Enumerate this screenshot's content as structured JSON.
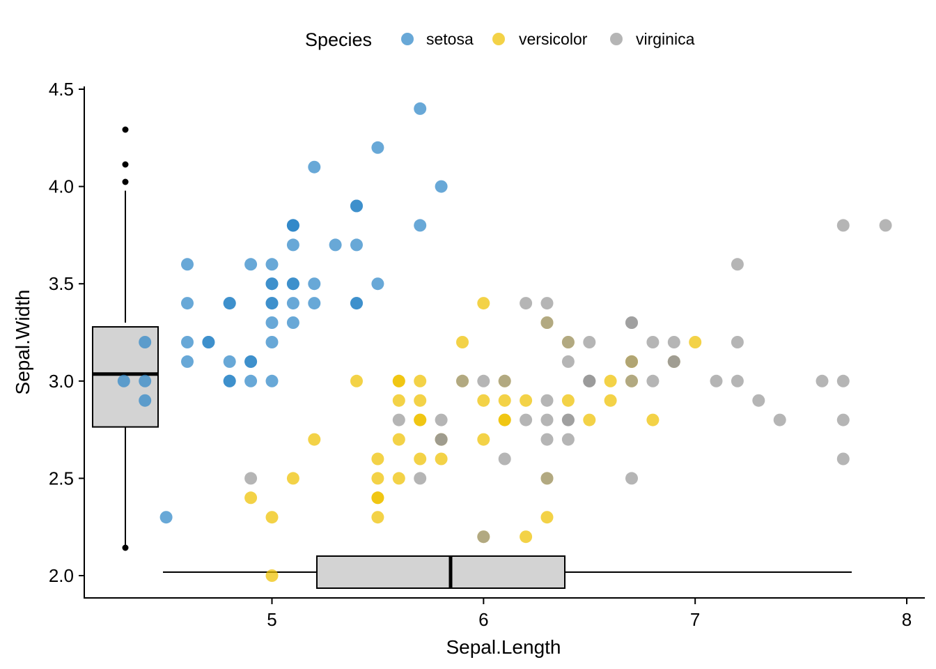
{
  "chart_data": {
    "type": "scatter",
    "title": "",
    "xlabel": "Sepal.Length",
    "ylabel": "Sepal.Width",
    "xlim": [
      4.2,
      8.1
    ],
    "ylim": [
      1.89,
      4.52
    ],
    "x_ticks": [
      5,
      6,
      7,
      8
    ],
    "x_tick_labels": [
      "5",
      "6",
      "7",
      "8"
    ],
    "y_ticks": [
      2.0,
      2.5,
      3.0,
      3.5,
      4.0,
      4.5
    ],
    "y_tick_labels": [
      "2.0",
      "2.5",
      "3.0",
      "3.5",
      "4.0",
      "4.5"
    ],
    "grid": false,
    "legend": {
      "title": "Species",
      "position": "top",
      "entries": [
        {
          "label": "setosa",
          "color": "#2E86C8"
        },
        {
          "label": "versicolor",
          "color": "#EFC000"
        },
        {
          "label": "virginica",
          "color": "#999999"
        }
      ]
    },
    "point_opacity": 0.72,
    "series": [
      {
        "name": "setosa",
        "color": "#2E86C8",
        "points": [
          [
            5.1,
            3.5
          ],
          [
            4.9,
            3.0
          ],
          [
            4.7,
            3.2
          ],
          [
            4.6,
            3.1
          ],
          [
            5.0,
            3.6
          ],
          [
            5.4,
            3.9
          ],
          [
            4.6,
            3.4
          ],
          [
            5.0,
            3.4
          ],
          [
            4.4,
            2.9
          ],
          [
            4.9,
            3.1
          ],
          [
            5.4,
            3.7
          ],
          [
            4.8,
            3.4
          ],
          [
            4.8,
            3.0
          ],
          [
            4.3,
            3.0
          ],
          [
            5.8,
            4.0
          ],
          [
            5.7,
            4.4
          ],
          [
            5.4,
            3.9
          ],
          [
            5.1,
            3.5
          ],
          [
            5.7,
            3.8
          ],
          [
            5.1,
            3.8
          ],
          [
            5.4,
            3.4
          ],
          [
            5.1,
            3.7
          ],
          [
            4.6,
            3.6
          ],
          [
            5.1,
            3.3
          ],
          [
            4.8,
            3.4
          ],
          [
            5.0,
            3.0
          ],
          [
            5.0,
            3.4
          ],
          [
            5.2,
            3.5
          ],
          [
            5.2,
            3.4
          ],
          [
            4.7,
            3.2
          ],
          [
            4.8,
            3.1
          ],
          [
            5.4,
            3.4
          ],
          [
            5.2,
            4.1
          ],
          [
            5.5,
            4.2
          ],
          [
            4.9,
            3.1
          ],
          [
            5.0,
            3.2
          ],
          [
            5.5,
            3.5
          ],
          [
            4.9,
            3.6
          ],
          [
            4.4,
            3.0
          ],
          [
            5.1,
            3.4
          ],
          [
            5.0,
            3.5
          ],
          [
            4.5,
            2.3
          ],
          [
            4.4,
            3.2
          ],
          [
            5.0,
            3.5
          ],
          [
            5.1,
            3.8
          ],
          [
            4.8,
            3.0
          ],
          [
            5.1,
            3.8
          ],
          [
            4.6,
            3.2
          ],
          [
            5.3,
            3.7
          ],
          [
            5.0,
            3.3
          ]
        ]
      },
      {
        "name": "versicolor",
        "color": "#EFC000",
        "points": [
          [
            7.0,
            3.2
          ],
          [
            6.4,
            3.2
          ],
          [
            6.9,
            3.1
          ],
          [
            5.5,
            2.3
          ],
          [
            6.5,
            2.8
          ],
          [
            5.7,
            2.8
          ],
          [
            6.3,
            3.3
          ],
          [
            4.9,
            2.4
          ],
          [
            6.6,
            2.9
          ],
          [
            5.2,
            2.7
          ],
          [
            5.0,
            2.0
          ],
          [
            5.9,
            3.0
          ],
          [
            6.0,
            2.2
          ],
          [
            6.1,
            2.9
          ],
          [
            5.6,
            2.9
          ],
          [
            6.7,
            3.1
          ],
          [
            5.6,
            3.0
          ],
          [
            5.8,
            2.7
          ],
          [
            6.2,
            2.2
          ],
          [
            5.6,
            2.5
          ],
          [
            5.9,
            3.2
          ],
          [
            6.1,
            2.8
          ],
          [
            6.3,
            2.5
          ],
          [
            6.1,
            2.8
          ],
          [
            6.4,
            2.9
          ],
          [
            6.6,
            3.0
          ],
          [
            6.8,
            2.8
          ],
          [
            6.7,
            3.0
          ],
          [
            6.0,
            2.9
          ],
          [
            5.7,
            2.6
          ],
          [
            5.5,
            2.4
          ],
          [
            5.5,
            2.4
          ],
          [
            5.8,
            2.7
          ],
          [
            6.0,
            2.7
          ],
          [
            5.4,
            3.0
          ],
          [
            6.0,
            3.4
          ],
          [
            6.7,
            3.1
          ],
          [
            6.3,
            2.3
          ],
          [
            5.6,
            3.0
          ],
          [
            5.5,
            2.5
          ],
          [
            5.5,
            2.6
          ],
          [
            6.1,
            3.0
          ],
          [
            5.8,
            2.6
          ],
          [
            5.0,
            2.3
          ],
          [
            5.6,
            2.7
          ],
          [
            5.7,
            3.0
          ],
          [
            5.7,
            2.9
          ],
          [
            6.2,
            2.9
          ],
          [
            5.1,
            2.5
          ],
          [
            5.7,
            2.8
          ]
        ]
      },
      {
        "name": "virginica",
        "color": "#999999",
        "points": [
          [
            6.3,
            3.3
          ],
          [
            5.8,
            2.7
          ],
          [
            7.1,
            3.0
          ],
          [
            6.3,
            2.9
          ],
          [
            6.5,
            3.0
          ],
          [
            7.6,
            3.0
          ],
          [
            4.9,
            2.5
          ],
          [
            7.3,
            2.9
          ],
          [
            6.7,
            2.5
          ],
          [
            7.2,
            3.6
          ],
          [
            6.5,
            3.2
          ],
          [
            6.4,
            2.7
          ],
          [
            6.8,
            3.0
          ],
          [
            5.7,
            2.5
          ],
          [
            5.8,
            2.8
          ],
          [
            6.4,
            3.2
          ],
          [
            6.5,
            3.0
          ],
          [
            7.7,
            3.8
          ],
          [
            7.7,
            2.6
          ],
          [
            6.0,
            2.2
          ],
          [
            6.9,
            3.2
          ],
          [
            5.6,
            2.8
          ],
          [
            7.7,
            2.8
          ],
          [
            6.3,
            2.7
          ],
          [
            6.7,
            3.3
          ],
          [
            7.2,
            3.2
          ],
          [
            6.2,
            2.8
          ],
          [
            6.1,
            3.0
          ],
          [
            6.4,
            2.8
          ],
          [
            7.2,
            3.0
          ],
          [
            7.4,
            2.8
          ],
          [
            7.9,
            3.8
          ],
          [
            6.4,
            2.8
          ],
          [
            6.3,
            2.8
          ],
          [
            6.1,
            2.6
          ],
          [
            7.7,
            3.0
          ],
          [
            6.3,
            3.4
          ],
          [
            6.4,
            3.1
          ],
          [
            6.0,
            3.0
          ],
          [
            6.9,
            3.1
          ],
          [
            6.7,
            3.1
          ],
          [
            6.9,
            3.1
          ],
          [
            5.8,
            2.7
          ],
          [
            6.8,
            3.2
          ],
          [
            6.7,
            3.3
          ],
          [
            6.7,
            3.0
          ],
          [
            6.3,
            2.5
          ],
          [
            6.5,
            3.0
          ],
          [
            6.2,
            3.4
          ],
          [
            5.9,
            3.0
          ]
        ]
      }
    ],
    "marginal_boxplots": {
      "x": {
        "variable": "Sepal.Length",
        "q1": 5.1,
        "median": 5.8,
        "q3": 6.4,
        "whisker_low": 4.3,
        "whisker_high": 7.9,
        "outliers": []
      },
      "y": {
        "variable": "Sepal.Width",
        "q1": 2.8,
        "median": 3.0,
        "q3": 3.3,
        "whisker_low": 2.2,
        "whisker_high": 4.0,
        "outliers": [
          4.4,
          4.1,
          4.2,
          2.0
        ]
      }
    }
  }
}
